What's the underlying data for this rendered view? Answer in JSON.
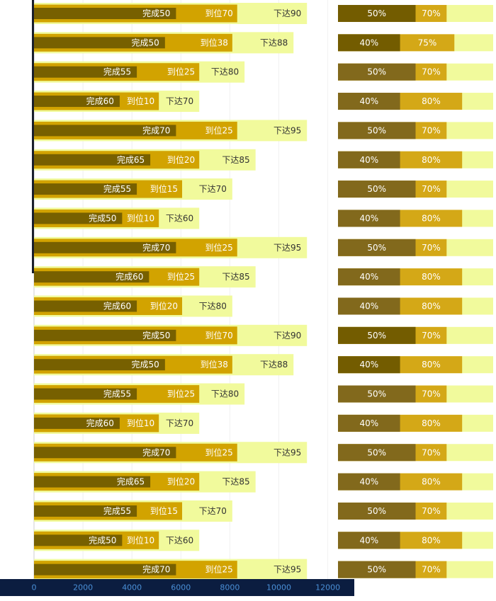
{
  "chart_data": {
    "type": "bar",
    "orientation": "horizontal",
    "bars_overlapping": true,
    "x_axis": {
      "min": 0,
      "max": 13000,
      "ticks": [
        0,
        2000,
        4000,
        6000,
        8000,
        10000,
        12000
      ],
      "position": "bottom",
      "colors": {
        "background": "#0b1d40",
        "label": "#4a8fd6"
      }
    },
    "grid": true,
    "legend": "none",
    "bar_colors": {
      "xiada": "#f1fa9c",
      "daowei": "#d2a300",
      "wancheng": "#776000",
      "ratio_bg": "#f1fa9c"
    },
    "rows": [
      {
        "xiada": 11150,
        "daowei": 8300,
        "wancheng": 5800,
        "xiada_label": "下达90",
        "daowei_label": "到位70",
        "wancheng_label": "完成50",
        "ratio_a": 0.5,
        "ratio_a_label": "50%",
        "ratio_b": 0.7,
        "ratio_b_label": "70%"
      },
      {
        "xiada": 10600,
        "daowei": 8100,
        "wancheng": 5350,
        "xiada_label": "下达88",
        "daowei_label": "到位38",
        "wancheng_label": "完成50",
        "ratio_a": 0.4,
        "ratio_a_label": "40%",
        "ratio_b": 0.75,
        "ratio_b_label": "75%"
      },
      {
        "xiada": 8600,
        "daowei": 6750,
        "wancheng": 4200,
        "xiada_label": "下达80",
        "daowei_label": "到位25",
        "wancheng_label": "完成55",
        "ratio_a": 0.5,
        "ratio_a_label": "50%",
        "ratio_b": 0.7,
        "ratio_b_label": "70%"
      },
      {
        "xiada": 6750,
        "daowei": 5100,
        "wancheng": 3500,
        "xiada_label": "下达70",
        "daowei_label": "到位10",
        "wancheng_label": "完成60",
        "ratio_a": 0.4,
        "ratio_a_label": "40%",
        "ratio_b": 0.8,
        "ratio_b_label": "80%"
      },
      {
        "xiada": 11150,
        "daowei": 8300,
        "wancheng": 5800,
        "xiada_label": "下达95",
        "daowei_label": "到位25",
        "wancheng_label": "完成70",
        "ratio_a": 0.5,
        "ratio_a_label": "50%",
        "ratio_b": 0.7,
        "ratio_b_label": "70%"
      },
      {
        "xiada": 9050,
        "daowei": 6750,
        "wancheng": 4750,
        "xiada_label": "下达85",
        "daowei_label": "到位20",
        "wancheng_label": "完成65",
        "ratio_a": 0.4,
        "ratio_a_label": "40%",
        "ratio_b": 0.8,
        "ratio_b_label": "80%"
      },
      {
        "xiada": 8100,
        "daowei": 6050,
        "wancheng": 4200,
        "xiada_label": "下达70",
        "daowei_label": "到位15",
        "wancheng_label": "完成55",
        "ratio_a": 0.5,
        "ratio_a_label": "50%",
        "ratio_b": 0.7,
        "ratio_b_label": "70%"
      },
      {
        "xiada": 6750,
        "daowei": 5100,
        "wancheng": 3600,
        "xiada_label": "下达60",
        "daowei_label": "到位10",
        "wancheng_label": "完成50",
        "ratio_a": 0.4,
        "ratio_a_label": "40%",
        "ratio_b": 0.8,
        "ratio_b_label": "80%"
      },
      {
        "xiada": 11150,
        "daowei": 8300,
        "wancheng": 5800,
        "xiada_label": "下达95",
        "daowei_label": "到位25",
        "wancheng_label": "完成70",
        "ratio_a": 0.5,
        "ratio_a_label": "50%",
        "ratio_b": 0.7,
        "ratio_b_label": "70%"
      },
      {
        "xiada": 9050,
        "daowei": 6750,
        "wancheng": 4700,
        "xiada_label": "下达85",
        "daowei_label": "到位25",
        "wancheng_label": "完成60",
        "ratio_a": 0.4,
        "ratio_a_label": "40%",
        "ratio_b": 0.8,
        "ratio_b_label": "80%"
      },
      {
        "xiada": 8100,
        "daowei": 6050,
        "wancheng": 4200,
        "xiada_label": "下达80",
        "daowei_label": "到位20",
        "wancheng_label": "完成60",
        "ratio_a": 0.4,
        "ratio_a_label": "40%",
        "ratio_b": 0.8,
        "ratio_b_label": "80%"
      },
      {
        "xiada": 11150,
        "daowei": 8300,
        "wancheng": 5800,
        "xiada_label": "下达90",
        "daowei_label": "到位70",
        "wancheng_label": "完成50",
        "ratio_a": 0.5,
        "ratio_a_label": "50%",
        "ratio_b": 0.7,
        "ratio_b_label": "70%"
      },
      {
        "xiada": 10600,
        "daowei": 8100,
        "wancheng": 5350,
        "xiada_label": "下达88",
        "daowei_label": "到位38",
        "wancheng_label": "完成50",
        "ratio_a": 0.4,
        "ratio_a_label": "40%",
        "ratio_b": 0.8,
        "ratio_b_label": "80%"
      },
      {
        "xiada": 8600,
        "daowei": 6750,
        "wancheng": 4200,
        "xiada_label": "下达80",
        "daowei_label": "到位25",
        "wancheng_label": "完成55",
        "ratio_a": 0.5,
        "ratio_a_label": "50%",
        "ratio_b": 0.7,
        "ratio_b_label": "70%"
      },
      {
        "xiada": 6750,
        "daowei": 5100,
        "wancheng": 3500,
        "xiada_label": "下达70",
        "daowei_label": "到位10",
        "wancheng_label": "完成60",
        "ratio_a": 0.4,
        "ratio_a_label": "40%",
        "ratio_b": 0.8,
        "ratio_b_label": "80%"
      },
      {
        "xiada": 11150,
        "daowei": 8300,
        "wancheng": 5800,
        "xiada_label": "下达95",
        "daowei_label": "到位25",
        "wancheng_label": "完成70",
        "ratio_a": 0.5,
        "ratio_a_label": "50%",
        "ratio_b": 0.7,
        "ratio_b_label": "70%"
      },
      {
        "xiada": 9050,
        "daowei": 6750,
        "wancheng": 4750,
        "xiada_label": "下达85",
        "daowei_label": "到位20",
        "wancheng_label": "完成65",
        "ratio_a": 0.4,
        "ratio_a_label": "40%",
        "ratio_b": 0.8,
        "ratio_b_label": "80%"
      },
      {
        "xiada": 8100,
        "daowei": 6050,
        "wancheng": 4200,
        "xiada_label": "下达70",
        "daowei_label": "到位15",
        "wancheng_label": "完成55",
        "ratio_a": 0.5,
        "ratio_a_label": "50%",
        "ratio_b": 0.7,
        "ratio_b_label": "70%"
      },
      {
        "xiada": 6750,
        "daowei": 5100,
        "wancheng": 3600,
        "xiada_label": "下达60",
        "daowei_label": "到位10",
        "wancheng_label": "完成50",
        "ratio_a": 0.4,
        "ratio_a_label": "40%",
        "ratio_b": 0.8,
        "ratio_b_label": "80%"
      },
      {
        "xiada": 11150,
        "daowei": 8300,
        "wancheng": 5800,
        "xiada_label": "下达95",
        "daowei_label": "到位25",
        "wancheng_label": "完成70",
        "ratio_a": 0.5,
        "ratio_a_label": "50%",
        "ratio_b": 0.7,
        "ratio_b_label": "70%"
      }
    ]
  }
}
